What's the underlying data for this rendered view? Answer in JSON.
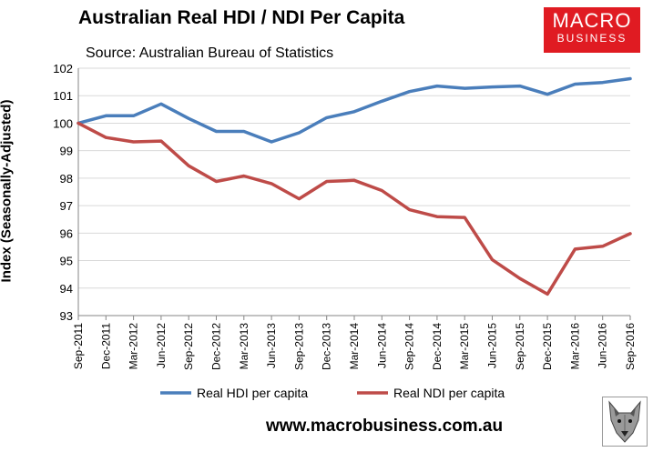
{
  "chart_data": {
    "type": "line",
    "title": "Australian Real HDI / NDI Per Capita",
    "subtitle": "Source: Australian Bureau of Statistics",
    "xlabel": "",
    "ylabel": "Index (Seasonally-Adjusted)",
    "ylim": [
      93,
      102
    ],
    "yticks": [
      93,
      94,
      95,
      96,
      97,
      98,
      99,
      100,
      101,
      102
    ],
    "grid": "horizontal",
    "legend_position": "bottom",
    "categories": [
      "Sep-2011",
      "Dec-2011",
      "Mar-2012",
      "Jun-2012",
      "Sep-2012",
      "Dec-2012",
      "Mar-2013",
      "Jun-2013",
      "Sep-2013",
      "Dec-2013",
      "Mar-2014",
      "Jun-2014",
      "Sep-2014",
      "Dec-2014",
      "Mar-2015",
      "Jun-2015",
      "Sep-2015",
      "Dec-2015",
      "Mar-2016",
      "Jun-2016",
      "Sep-2016"
    ],
    "series": [
      {
        "name": "Real HDI per capita",
        "color": "#4a7ebb",
        "values": [
          100.0,
          100.27,
          100.27,
          100.7,
          100.17,
          99.7,
          99.7,
          99.32,
          99.65,
          100.2,
          100.42,
          100.8,
          101.15,
          101.35,
          101.27,
          101.32,
          101.35,
          101.05,
          101.42,
          101.48,
          101.62
        ]
      },
      {
        "name": "Real NDI per capita",
        "color": "#be4b48",
        "values": [
          100.0,
          99.48,
          99.32,
          99.35,
          98.45,
          97.88,
          98.08,
          97.8,
          97.25,
          97.88,
          97.92,
          97.55,
          96.85,
          96.6,
          96.57,
          95.03,
          94.35,
          93.78,
          95.42,
          95.52,
          95.98
        ]
      }
    ]
  },
  "branding": {
    "logo_line1": "MACRO",
    "logo_line2": "BUSINESS",
    "website": "www.macrobusiness.com.au",
    "mascot_icon": "wolf-icon"
  }
}
